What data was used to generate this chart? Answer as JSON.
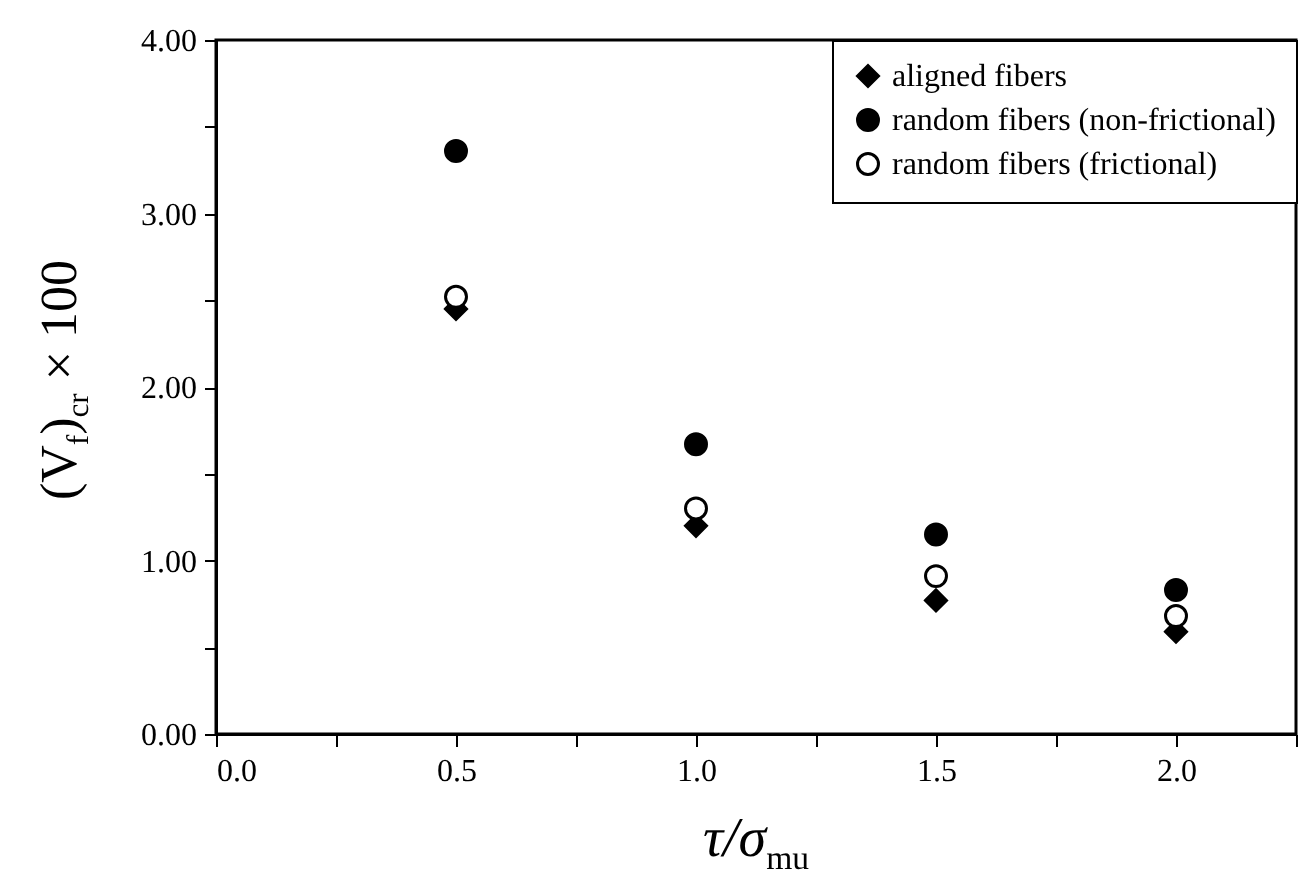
{
  "chart_data": {
    "type": "scatter",
    "xlabel": "τ/σ$_{mu}$",
    "ylabel": "(V$_{f}$)$_{cr}$ × 100",
    "x": [
      0.5,
      1.0,
      1.5,
      2.0
    ],
    "series": [
      {
        "name": "aligned fibers",
        "color": "#000000",
        "marker": "diamond",
        "values": [
          2.45,
          1.2,
          0.77,
          0.59
        ]
      },
      {
        "name": "random fibers (non-frictional)",
        "color": "#000000",
        "marker": "circle",
        "values": [
          3.36,
          1.67,
          1.15,
          0.83
        ]
      },
      {
        "name": "random fibers (frictional)",
        "color": "#ffffff",
        "marker": "circle",
        "values": [
          2.52,
          1.3,
          0.91,
          0.68
        ]
      }
    ],
    "xlim": [
      0,
      2.25
    ],
    "xticks": [
      {
        "value": 0,
        "label": "0.0"
      },
      {
        "value": 0.25,
        "label": null
      },
      {
        "value": 0.5,
        "label": "0.5"
      },
      {
        "value": 0.75,
        "label": null
      },
      {
        "value": 1,
        "label": "1.0"
      },
      {
        "value": 1.25,
        "label": null
      },
      {
        "value": 1.5,
        "label": "1.5"
      },
      {
        "value": 1.75,
        "label": null
      },
      {
        "value": 2,
        "label": "2.0"
      },
      {
        "value": 2.25,
        "label": null
      }
    ],
    "ylim": [
      0,
      4
    ],
    "yticks": [
      {
        "value": 0,
        "label": "0.00"
      },
      {
        "value": 0.5,
        "label": null
      },
      {
        "value": 1,
        "label": "1.00"
      },
      {
        "value": 1.5,
        "label": null
      },
      {
        "value": 2,
        "label": "2.00"
      },
      {
        "value": 2.5,
        "label": null
      },
      {
        "value": 3,
        "label": "3.00"
      },
      {
        "value": 3.5,
        "label": null
      },
      {
        "value": 4,
        "label": "4.00"
      }
    ],
    "grid": false,
    "legend": "top right"
  }
}
